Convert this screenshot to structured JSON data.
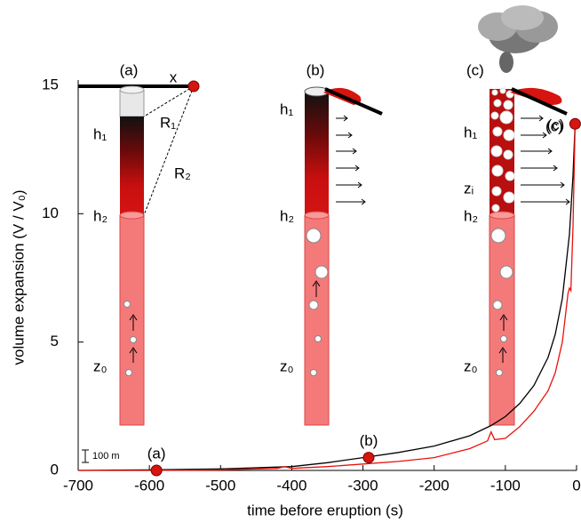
{
  "chart_data": {
    "type": "line",
    "x_label": "time before eruption (s)",
    "y_label": "volume expansion (V / V₀)",
    "xlim": [
      -700,
      0
    ],
    "xticks": [
      -700,
      -600,
      -500,
      -400,
      -300,
      -200,
      -100,
      0
    ],
    "ylim": [
      0,
      15
    ],
    "yticks": [
      0,
      5,
      10,
      15
    ],
    "series": [
      {
        "color": "#000000",
        "x": [
          -700,
          -600,
          -500,
          -400,
          -350,
          -300,
          -250,
          -200,
          -150,
          -120,
          -100,
          -80,
          -60,
          -40,
          -30,
          -20,
          -10,
          -5,
          -2
        ],
        "values": [
          0,
          0.02,
          0.06,
          0.15,
          0.3,
          0.5,
          0.7,
          0.95,
          1.35,
          1.75,
          2.1,
          2.6,
          3.3,
          4.4,
          5.3,
          6.7,
          9.2,
          11.5,
          13.5
        ]
      },
      {
        "color": "#e8120c",
        "x": [
          -700,
          -600,
          -500,
          -420,
          -410,
          -400,
          -350,
          -300,
          -250,
          -200,
          -150,
          -125,
          -120,
          -115,
          -100,
          -80,
          -60,
          -40,
          -30,
          -20,
          -12,
          -10,
          -8,
          -5,
          -2
        ],
        "values": [
          0,
          0,
          0.02,
          0.08,
          0.15,
          0.08,
          0.15,
          0.25,
          0.35,
          0.5,
          0.85,
          1.15,
          1.5,
          1.2,
          1.25,
          1.7,
          2.3,
          3.1,
          3.8,
          5.0,
          6.9,
          7.1,
          7.0,
          9.5,
          13.5
        ]
      }
    ],
    "markers": {
      "color": "#d7140f",
      "x": [
        -590,
        -292,
        -2
      ],
      "values": [
        0,
        0.5,
        13.5
      ],
      "labels": [
        "(a)",
        "(b)",
        "(c)"
      ]
    },
    "annotations": [
      "(a)",
      "x",
      "R₁",
      "R₂",
      "h₁",
      "h₂",
      "z₀",
      "(b)",
      "h₁",
      "h₂",
      "z₀",
      "(c)",
      "h₁",
      "zᵢ",
      "h₂",
      "z₀",
      "(c)",
      "100 m"
    ]
  }
}
